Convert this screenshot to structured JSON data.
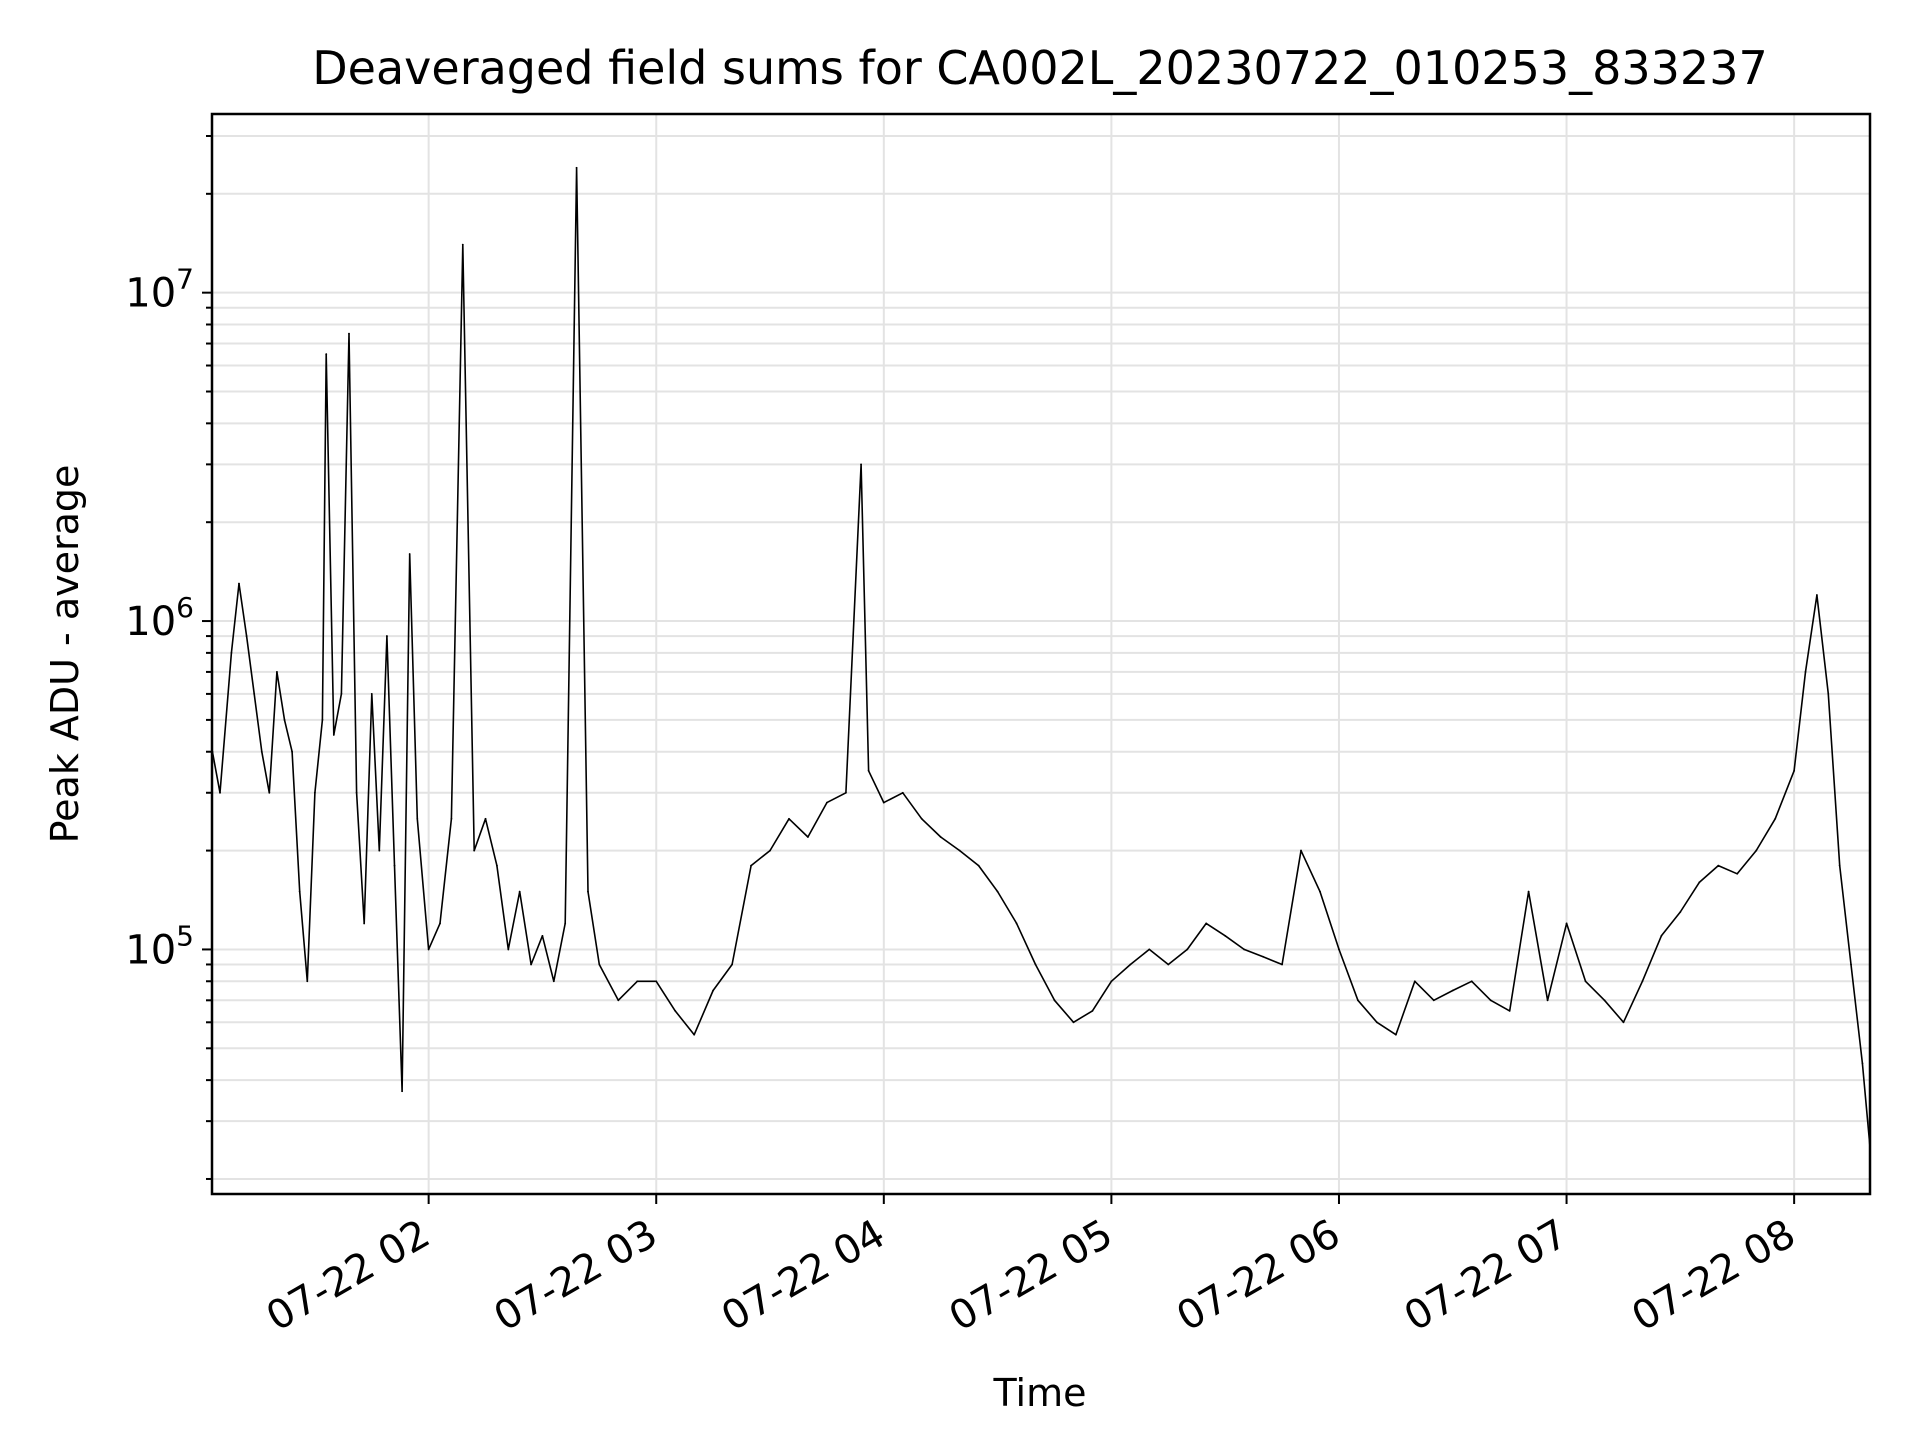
{
  "chart_data": {
    "type": "line",
    "title": "Deaveraged field sums for CA002L_20230722_010253_833237",
    "xlabel": "Time",
    "ylabel": "Peak ADU - average",
    "y_scale": "log",
    "xlim": [
      "2023-07-22 01:02:53",
      "2023-07-22 08:20"
    ],
    "ylim": [
      18000,
      35000000
    ],
    "x_ticks": [
      "07-22 02",
      "07-22 03",
      "07-22 04",
      "07-22 05",
      "07-22 06",
      "07-22 07",
      "07-22 08"
    ],
    "y_ticks": [
      {
        "base": "10",
        "exp": "5"
      },
      {
        "base": "10",
        "exp": "6"
      },
      {
        "base": "10",
        "exp": "7"
      }
    ],
    "grid": true,
    "series": [
      {
        "color": "#000000",
        "x": [
          "01:03",
          "01:05",
          "01:08",
          "01:10",
          "01:12",
          "01:14",
          "01:16",
          "01:18",
          "01:20",
          "01:22",
          "01:24",
          "01:26",
          "01:28",
          "01:30",
          "01:32",
          "01:33",
          "01:35",
          "01:37",
          "01:39",
          "01:41",
          "01:43",
          "01:45",
          "01:47",
          "01:49",
          "01:51",
          "01:53",
          "01:55",
          "01:57",
          "02:00",
          "02:03",
          "02:06",
          "02:09",
          "02:12",
          "02:15",
          "02:18",
          "02:21",
          "02:24",
          "02:27",
          "02:30",
          "02:33",
          "02:36",
          "02:39",
          "02:42",
          "02:45",
          "02:50",
          "02:55",
          "03:00",
          "03:05",
          "03:10",
          "03:15",
          "03:20",
          "03:25",
          "03:30",
          "03:35",
          "03:40",
          "03:45",
          "03:50",
          "03:54",
          "03:56",
          "04:00",
          "04:05",
          "04:10",
          "04:15",
          "04:20",
          "04:25",
          "04:30",
          "04:35",
          "04:40",
          "04:45",
          "04:50",
          "04:55",
          "05:00",
          "05:05",
          "05:10",
          "05:15",
          "05:20",
          "05:25",
          "05:30",
          "05:35",
          "05:40",
          "05:45",
          "05:50",
          "05:55",
          "06:00",
          "06:05",
          "06:10",
          "06:15",
          "06:20",
          "06:25",
          "06:30",
          "06:35",
          "06:40",
          "06:45",
          "06:50",
          "06:55",
          "07:00",
          "07:05",
          "07:10",
          "07:15",
          "07:20",
          "07:25",
          "07:30",
          "07:35",
          "07:40",
          "07:45",
          "07:50",
          "07:55",
          "08:00",
          "08:03",
          "08:06",
          "08:09",
          "08:12",
          "08:15",
          "08:18",
          "08:20"
        ],
        "values": [
          400000,
          300000,
          800000,
          1300000,
          900000,
          600000,
          400000,
          300000,
          700000,
          500000,
          400000,
          150000,
          80000,
          300000,
          500000,
          6500000,
          450000,
          600000,
          7500000,
          300000,
          120000,
          600000,
          200000,
          900000,
          180000,
          37000,
          1600000,
          250000,
          100000,
          120000,
          250000,
          14000000,
          200000,
          250000,
          180000,
          100000,
          150000,
          90000,
          110000,
          80000,
          120000,
          24000000,
          150000,
          90000,
          70000,
          80000,
          80000,
          65000,
          55000,
          75000,
          90000,
          180000,
          200000,
          250000,
          220000,
          280000,
          300000,
          3000000,
          350000,
          280000,
          300000,
          250000,
          220000,
          200000,
          180000,
          150000,
          120000,
          90000,
          70000,
          60000,
          65000,
          80000,
          90000,
          100000,
          90000,
          100000,
          120000,
          110000,
          100000,
          95000,
          90000,
          200000,
          150000,
          100000,
          70000,
          60000,
          55000,
          80000,
          70000,
          75000,
          80000,
          70000,
          65000,
          150000,
          70000,
          120000,
          80000,
          70000,
          60000,
          80000,
          110000,
          130000,
          160000,
          180000,
          170000,
          200000,
          250000,
          350000,
          700000,
          1200000,
          600000,
          180000,
          90000,
          45000,
          25000
        ]
      }
    ]
  }
}
